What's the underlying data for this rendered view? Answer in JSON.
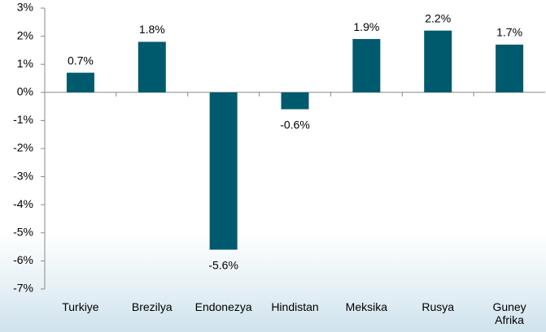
{
  "chart_data": {
    "type": "bar",
    "categories": [
      "Turkiye",
      "Brezilya",
      "Endonezya",
      "Hindistan",
      "Meksika",
      "Rusya",
      "Guney Afrika"
    ],
    "values": [
      0.7,
      1.8,
      -5.6,
      -0.6,
      1.9,
      2.2,
      1.7
    ],
    "value_labels": [
      "0.7%",
      "1.8%",
      "-5.6%",
      "-0.6%",
      "1.9%",
      "2.2%",
      "1.7%"
    ],
    "color": "#005a6e",
    "ylim": [
      -7,
      3
    ],
    "yticks": [
      {
        "value": 3,
        "label": "3%"
      },
      {
        "value": 2,
        "label": "2%"
      },
      {
        "value": 1,
        "label": "1%"
      },
      {
        "value": 0,
        "label": "0%"
      },
      {
        "value": -1,
        "label": "-1%"
      },
      {
        "value": -2,
        "label": "-2%"
      },
      {
        "value": -3,
        "label": "-3%"
      },
      {
        "value": -4,
        "label": "-4%"
      },
      {
        "value": -5,
        "label": "-5%"
      },
      {
        "value": -6,
        "label": "-6%"
      },
      {
        "value": -7,
        "label": "-7%"
      }
    ],
    "grid": false
  }
}
